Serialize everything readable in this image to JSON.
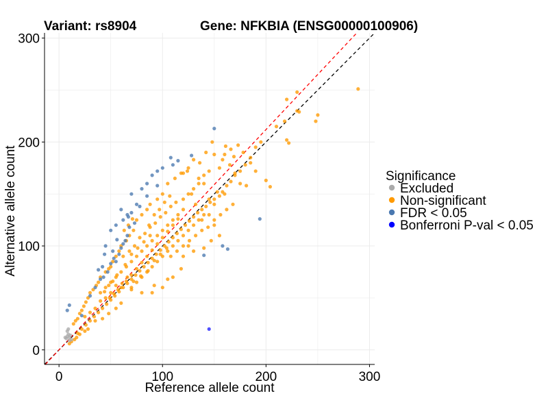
{
  "chart_data": {
    "type": "scatter",
    "title_left": "Variant: rs8904",
    "title_right": "Gene: NFKBIA (ENSG00000100906)",
    "xlabel": "Reference allele count",
    "ylabel": "Alternative allele count",
    "xlim": [
      -14,
      305
    ],
    "ylim": [
      -14,
      305
    ],
    "x_ticks": [
      0,
      100,
      200,
      300
    ],
    "y_ticks": [
      0,
      100,
      200,
      300
    ],
    "grid": true,
    "reference_lines": [
      {
        "name": "identity",
        "slope": 1.0,
        "intercept": 0,
        "color": "#000000",
        "dash": true
      },
      {
        "name": "fitted",
        "slope": 1.06,
        "intercept": 0,
        "color": "#ff0000",
        "dash": true
      }
    ],
    "legend": {
      "title": "Significance",
      "position": "right",
      "entries": [
        {
          "label": "Excluded",
          "color": "#aaaaaa"
        },
        {
          "label": "Non-significant",
          "color": "#ff9a00"
        },
        {
          "label": "FDR < 0.05",
          "color": "#4a78b0"
        },
        {
          "label": "Bonferroni P-val < 0.05",
          "color": "#0000ff"
        }
      ]
    },
    "series": [
      {
        "name": "Excluded",
        "color": "#aaaaaa",
        "points": [
          [
            8,
            18
          ],
          [
            7,
            11
          ],
          [
            9,
            15
          ],
          [
            10,
            9
          ],
          [
            11,
            14
          ],
          [
            6,
            12
          ],
          [
            9,
            20
          ],
          [
            12,
            10
          ],
          [
            8,
            13
          ],
          [
            10,
            12
          ]
        ]
      },
      {
        "name": "FDR < 0.05",
        "color": "#4a78b0",
        "points": [
          [
            8,
            38
          ],
          [
            10,
            43
          ],
          [
            22,
            33
          ],
          [
            30,
            52
          ],
          [
            35,
            60
          ],
          [
            40,
            68
          ],
          [
            43,
            70
          ],
          [
            47,
            75
          ],
          [
            50,
            83
          ],
          [
            53,
            88
          ],
          [
            55,
            85
          ],
          [
            58,
            92
          ],
          [
            60,
            98
          ],
          [
            62,
            102
          ],
          [
            64,
            105
          ],
          [
            66,
            110
          ],
          [
            50,
            115
          ],
          [
            55,
            120
          ],
          [
            45,
            100
          ],
          [
            42,
            80
          ],
          [
            62,
            125
          ],
          [
            67,
            128
          ],
          [
            70,
            132
          ],
          [
            75,
            140
          ],
          [
            80,
            155
          ],
          [
            85,
            160
          ],
          [
            90,
            168
          ],
          [
            95,
            172
          ],
          [
            100,
            175
          ],
          [
            108,
            185
          ],
          [
            115,
            182
          ],
          [
            128,
            187
          ],
          [
            150,
            213
          ],
          [
            85,
            148
          ],
          [
            73,
            122
          ],
          [
            56,
            106
          ],
          [
            60,
            135
          ],
          [
            66,
            130
          ],
          [
            70,
            150
          ],
          [
            44,
            92
          ],
          [
            38,
            77
          ],
          [
            110,
            178
          ],
          [
            68,
            118
          ],
          [
            52,
            95
          ],
          [
            194,
            126
          ],
          [
            158,
            100
          ],
          [
            163,
            97
          ],
          [
            140,
            91
          ],
          [
            95,
            158
          ],
          [
            78,
            138
          ]
        ]
      },
      {
        "name": "Bonferroni P-val < 0.05",
        "color": "#1f1fff",
        "points": [
          [
            145,
            20
          ]
        ]
      },
      {
        "name": "Non-significant",
        "color": "#ff9a00",
        "points": [
          [
            289,
            251
          ],
          [
            230,
            248
          ],
          [
            220,
            241
          ],
          [
            250,
            226
          ],
          [
            248,
            220
          ],
          [
            232,
            229
          ],
          [
            218,
            220
          ],
          [
            222,
            199
          ],
          [
            220,
            202
          ],
          [
            204,
            157
          ],
          [
            200,
            163
          ],
          [
            185,
            180
          ],
          [
            190,
            172
          ],
          [
            178,
            190
          ],
          [
            173,
            197
          ],
          [
            169,
            186
          ],
          [
            166,
            193
          ],
          [
            161,
            196
          ],
          [
            160,
            188
          ],
          [
            158,
            183
          ],
          [
            155,
            175
          ],
          [
            150,
            188
          ],
          [
            148,
            200
          ],
          [
            142,
            190
          ],
          [
            136,
            180
          ],
          [
            130,
            183
          ],
          [
            125,
            175
          ],
          [
            120,
            170
          ],
          [
            165,
            178
          ],
          [
            170,
            168
          ],
          [
            175,
            160
          ],
          [
            181,
            158
          ],
          [
            160,
            150
          ],
          [
            150,
            140
          ],
          [
            145,
            145
          ],
          [
            153,
            152
          ],
          [
            140,
            160
          ],
          [
            135,
            165
          ],
          [
            130,
            155
          ],
          [
            128,
            150
          ],
          [
            132,
            140
          ],
          [
            138,
            125
          ],
          [
            145,
            130
          ],
          [
            150,
            120
          ],
          [
            155,
            110
          ],
          [
            147,
            105
          ],
          [
            140,
            98
          ],
          [
            130,
            95
          ],
          [
            125,
            100
          ],
          [
            120,
            90
          ],
          [
            118,
            78
          ],
          [
            110,
            70
          ],
          [
            105,
            68
          ],
          [
            100,
            60
          ],
          [
            92,
            62
          ],
          [
            90,
            55
          ],
          [
            80,
            55
          ],
          [
            70,
            58
          ],
          [
            60,
            45
          ],
          [
            55,
            40
          ],
          [
            48,
            35
          ],
          [
            42,
            30
          ],
          [
            35,
            28
          ],
          [
            28,
            20
          ],
          [
            25,
            18
          ],
          [
            20,
            15
          ],
          [
            17,
            12
          ],
          [
            15,
            10
          ],
          [
            12,
            8
          ],
          [
            10,
            6
          ],
          [
            230,
            230
          ],
          [
            210,
            215
          ],
          [
            195,
            200
          ],
          [
            190,
            195
          ],
          [
            185,
            185
          ],
          [
            180,
            178
          ],
          [
            175,
            172
          ],
          [
            170,
            170
          ],
          [
            166,
            162
          ],
          [
            162,
            158
          ],
          [
            158,
            152
          ],
          [
            155,
            148
          ],
          [
            150,
            145
          ],
          [
            146,
            142
          ],
          [
            142,
            138
          ],
          [
            138,
            135
          ],
          [
            134,
            132
          ],
          [
            130,
            128
          ],
          [
            126,
            124
          ],
          [
            122,
            120
          ],
          [
            118,
            116
          ],
          [
            114,
            112
          ],
          [
            110,
            108
          ],
          [
            106,
            104
          ],
          [
            102,
            100
          ],
          [
            98,
            96
          ],
          [
            94,
            92
          ],
          [
            90,
            88
          ],
          [
            86,
            84
          ],
          [
            82,
            80
          ],
          [
            78,
            76
          ],
          [
            74,
            72
          ],
          [
            70,
            68
          ],
          [
            66,
            64
          ],
          [
            62,
            60
          ],
          [
            58,
            56
          ],
          [
            54,
            52
          ],
          [
            50,
            48
          ],
          [
            46,
            44
          ],
          [
            42,
            40
          ],
          [
            38,
            36
          ],
          [
            34,
            32
          ],
          [
            30,
            28
          ],
          [
            26,
            24
          ],
          [
            22,
            20
          ],
          [
            18,
            16
          ],
          [
            75,
            125
          ],
          [
            80,
            130
          ],
          [
            85,
            135
          ],
          [
            88,
            140
          ],
          [
            95,
            145
          ],
          [
            100,
            150
          ],
          [
            105,
            160
          ],
          [
            112,
            165
          ],
          [
            118,
            170
          ],
          [
            124,
            172
          ],
          [
            68,
            110
          ],
          [
            72,
            115
          ],
          [
            65,
            105
          ],
          [
            60,
            100
          ],
          [
            58,
            95
          ],
          [
            55,
            90
          ],
          [
            52,
            85
          ],
          [
            50,
            80
          ],
          [
            48,
            78
          ],
          [
            45,
            75
          ],
          [
            40,
            70
          ],
          [
            38,
            65
          ],
          [
            36,
            62
          ],
          [
            33,
            58
          ],
          [
            30,
            55
          ],
          [
            28,
            50
          ],
          [
            26,
            46
          ],
          [
            24,
            42
          ],
          [
            22,
            38
          ],
          [
            20,
            35
          ],
          [
            18,
            30
          ],
          [
            16,
            28
          ],
          [
            14,
            25
          ],
          [
            40,
            55
          ],
          [
            45,
            60
          ],
          [
            50,
            65
          ],
          [
            55,
            70
          ],
          [
            60,
            75
          ],
          [
            65,
            80
          ],
          [
            70,
            85
          ],
          [
            75,
            90
          ],
          [
            80,
            95
          ],
          [
            85,
            100
          ],
          [
            90,
            105
          ],
          [
            95,
            110
          ],
          [
            100,
            115
          ],
          [
            105,
            120
          ],
          [
            110,
            125
          ],
          [
            115,
            130
          ],
          [
            120,
            135
          ],
          [
            60,
            60
          ],
          [
            65,
            66
          ],
          [
            70,
            72
          ],
          [
            75,
            78
          ],
          [
            80,
            84
          ],
          [
            85,
            90
          ],
          [
            90,
            96
          ],
          [
            95,
            102
          ],
          [
            100,
            108
          ],
          [
            105,
            114
          ],
          [
            110,
            120
          ],
          [
            115,
            126
          ],
          [
            70,
            60
          ],
          [
            75,
            65
          ],
          [
            80,
            70
          ],
          [
            85,
            75
          ],
          [
            90,
            80
          ],
          [
            95,
            85
          ],
          [
            100,
            90
          ],
          [
            105,
            95
          ],
          [
            110,
            100
          ],
          [
            115,
            105
          ],
          [
            120,
            110
          ],
          [
            125,
            115
          ],
          [
            130,
            120
          ],
          [
            135,
            125
          ],
          [
            140,
            130
          ],
          [
            62,
            90
          ],
          [
            68,
            95
          ],
          [
            73,
            100
          ],
          [
            78,
            108
          ],
          [
            83,
            112
          ],
          [
            88,
            118
          ],
          [
            93,
            122
          ],
          [
            98,
            128
          ],
          [
            103,
            132
          ],
          [
            108,
            138
          ],
          [
            113,
            142
          ],
          [
            45,
            50
          ],
          [
            50,
            55
          ],
          [
            55,
            62
          ],
          [
            35,
            40
          ],
          [
            40,
            47
          ],
          [
            30,
            36
          ],
          [
            25,
            32
          ],
          [
            70,
            92
          ],
          [
            76,
            98
          ],
          [
            82,
            104
          ],
          [
            88,
            110
          ],
          [
            64,
            82
          ],
          [
            56,
            72
          ],
          [
            52,
            66
          ],
          [
            48,
            62
          ],
          [
            44,
            56
          ],
          [
            92,
            86
          ],
          [
            98,
            92
          ],
          [
            104,
            98
          ],
          [
            86,
            76
          ],
          [
            79,
            71
          ],
          [
            72,
            66
          ],
          [
            66,
            70
          ],
          [
            61,
            64
          ],
          [
            57,
            58
          ],
          [
            53,
            54
          ],
          [
            49,
            50
          ],
          [
            87,
            120
          ],
          [
            92,
            130
          ],
          [
            97,
            135
          ],
          [
            102,
            142
          ],
          [
            107,
            148
          ],
          [
            63,
            115
          ],
          [
            67,
            120
          ],
          [
            71,
            126
          ],
          [
            120,
            145
          ],
          [
            125,
            150
          ],
          [
            135,
            160
          ],
          [
            140,
            168
          ],
          [
            145,
            172
          ],
          [
            108,
            90
          ],
          [
            114,
            95
          ],
          [
            120,
            100
          ],
          [
            126,
            105
          ],
          [
            132,
            110
          ],
          [
            138,
            115
          ],
          [
            144,
            118
          ],
          [
            150,
            125
          ],
          [
            156,
            130
          ],
          [
            162,
            135
          ],
          [
            168,
            140
          ]
        ]
      }
    ]
  }
}
